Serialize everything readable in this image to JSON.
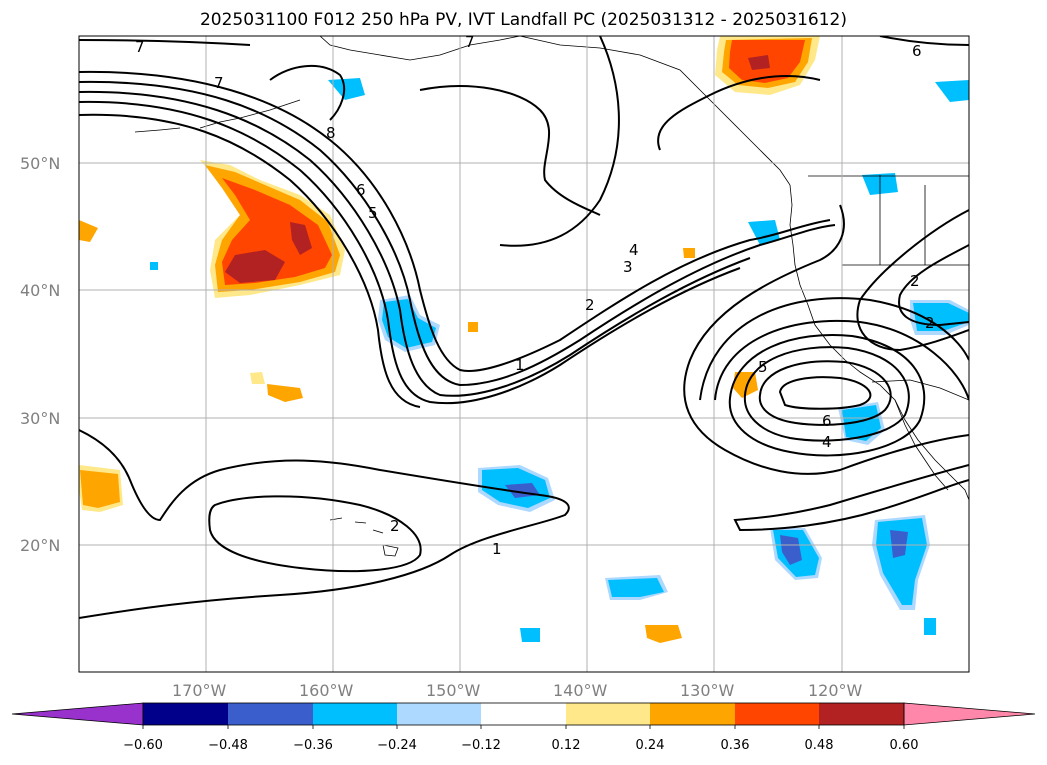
{
  "title": "2025031100 F012 250 hPa PV, IVT Landfall PC (2025031312 - 2025031612)",
  "map": {
    "projection": "cylindrical",
    "lon_range": [
      -180,
      -110
    ],
    "lat_range": [
      10,
      60
    ],
    "lat_labels": [
      "50°N",
      "40°N",
      "30°N",
      "20°N"
    ],
    "lon_labels": [
      "170°W",
      "160°W",
      "150°W",
      "140°W",
      "130°W",
      "120°W"
    ],
    "grid_color": "#b0b0b0",
    "label_color": "#808080"
  },
  "contours": {
    "color": "#000000",
    "labels": [
      "7",
      "7",
      "8",
      "6",
      "5",
      "4",
      "3",
      "2",
      "1",
      "5",
      "6",
      "4",
      "2",
      "1",
      "2",
      "6",
      "7",
      "2"
    ]
  },
  "colorbar": {
    "ticks": [
      "−0.60",
      "−0.48",
      "−0.36",
      "−0.24",
      "−0.12",
      "0.12",
      "0.24",
      "0.36",
      "0.48",
      "0.60"
    ],
    "colors": [
      "#9932cc",
      "#00008b",
      "#3a5fcd",
      "#00bfff",
      "#add8ff",
      "#ffffff",
      "#ffe88a",
      "#ffa500",
      "#ff4500",
      "#b22222",
      "#ff88aa"
    ]
  }
}
